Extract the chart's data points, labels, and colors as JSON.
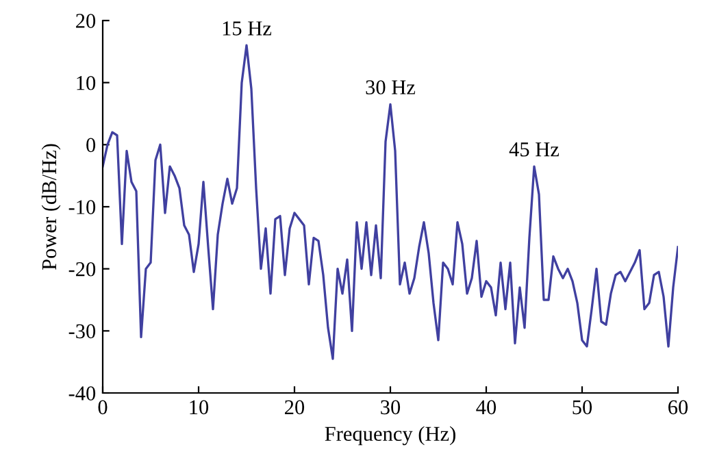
{
  "chart_data": {
    "type": "line",
    "xlabel": "Frequency (Hz)",
    "ylabel": "Power (dB/Hz)",
    "xlim": [
      0,
      60
    ],
    "ylim": [
      -40,
      20
    ],
    "xticks": [
      0,
      10,
      20,
      30,
      40,
      50,
      60
    ],
    "yticks": [
      -40,
      -30,
      -20,
      -10,
      0,
      10,
      20
    ],
    "grid": false,
    "legend": false,
    "marker": "none",
    "line_style": "solid",
    "x": [
      0,
      0.5,
      1,
      1.5,
      2,
      2.5,
      3,
      3.5,
      4,
      4.5,
      5,
      5.5,
      6,
      6.5,
      7,
      7.5,
      8,
      8.5,
      9,
      9.5,
      10,
      10.5,
      11,
      11.5,
      12,
      12.5,
      13,
      13.5,
      14,
      14.5,
      15,
      15.5,
      16,
      16.5,
      17,
      17.5,
      18,
      18.5,
      19,
      19.5,
      20,
      20.5,
      21,
      21.5,
      22,
      22.5,
      23,
      23.5,
      24,
      24.5,
      25,
      25.5,
      26,
      26.5,
      27,
      27.5,
      28,
      28.5,
      29,
      29.5,
      30,
      30.5,
      31,
      31.5,
      32,
      32.5,
      33,
      33.5,
      34,
      34.5,
      35,
      35.5,
      36,
      36.5,
      37,
      37.5,
      38,
      38.5,
      39,
      39.5,
      40,
      40.5,
      41,
      41.5,
      42,
      42.5,
      43,
      43.5,
      44,
      44.5,
      45,
      45.5,
      46,
      46.5,
      47,
      47.5,
      48,
      48.5,
      49,
      49.5,
      50,
      50.5,
      51,
      51.5,
      52,
      52.5,
      53,
      53.5,
      54,
      54.5,
      55,
      55.5,
      56,
      56.5,
      57,
      57.5,
      58,
      58.5,
      59,
      59.5,
      60
    ],
    "series": [
      {
        "color": "#4040a0",
        "values": [
          -3.5,
          0,
          2,
          1.5,
          -16,
          -1,
          -6,
          -7.5,
          -31,
          -20,
          -19,
          -2.5,
          0,
          -11,
          -3.5,
          -5,
          -7,
          -13,
          -14.5,
          -20.5,
          -16,
          -6,
          -16.5,
          -26.5,
          -14.5,
          -9.5,
          -5.5,
          -9.5,
          -7,
          10,
          16,
          9,
          -7,
          -20,
          -13.5,
          -24,
          -12,
          -11.5,
          -21,
          -13.5,
          -11,
          -12,
          -13,
          -22.5,
          -15,
          -15.5,
          -21,
          -29.5,
          -34.5,
          -20,
          -24,
          -18.5,
          -30,
          -12.5,
          -20,
          -12.5,
          -21,
          -13,
          -21.5,
          0.5,
          6.5,
          -1,
          -22.5,
          -19,
          -24,
          -21.5,
          -16.5,
          -12.5,
          -17.5,
          -25.5,
          -31.5,
          -19,
          -20,
          -22.5,
          -12.5,
          -16,
          -24,
          -21.5,
          -15.5,
          -24.5,
          -22,
          -23,
          -27.5,
          -19,
          -26.5,
          -19,
          -32,
          -23,
          -29.5,
          -15,
          -3.5,
          -8,
          -25,
          -25,
          -18,
          -20,
          -21.5,
          -20,
          -22,
          -25.5,
          -31.5,
          -32.5,
          -26.5,
          -20,
          -28.5,
          -29,
          -24,
          -21,
          -20.5,
          -22,
          -20.5,
          -19,
          -17,
          -26.5,
          -25.5,
          -21,
          -20.5,
          -24.5,
          -32.5,
          -23,
          -16.5
        ]
      }
    ],
    "annotations": [
      {
        "text": "15 Hz",
        "x": 15,
        "y": 16
      },
      {
        "text": "30 Hz",
        "x": 30,
        "y": 6.5
      },
      {
        "text": "45 Hz",
        "x": 45,
        "y": -3.5
      }
    ]
  }
}
